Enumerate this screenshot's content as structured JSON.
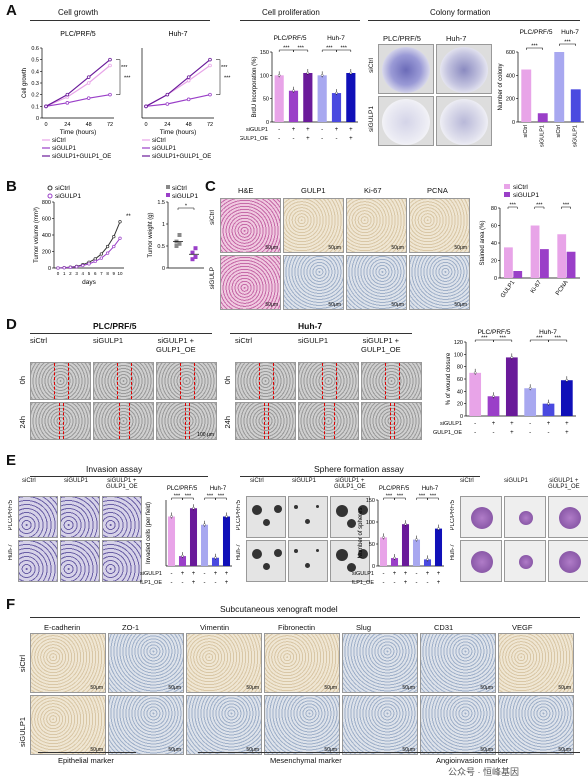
{
  "panelA": {
    "label": "A",
    "growth_title": "Cell growth",
    "prolif_title": "Cell proliferation",
    "colony_title": "Colony formation",
    "cell1": "PLC/PRF/5",
    "cell2": "Huh-7",
    "ylabel_growth": "Cell growth",
    "xlabel_growth": "Time (hours)",
    "ylabel_brdu": "BrdU incorporation (%)",
    "ylabel_colony": "Number of colony",
    "legend": [
      "siCtrl",
      "siGULP1",
      "siGULP1+GULP1_OE"
    ],
    "sig": "***",
    "row_siGULP1": "siGULP1",
    "row_oe": "GULP1_OE",
    "colony_rows": [
      "siCtrl",
      "siGULP1"
    ],
    "colony_xlabels": [
      "siCtrl",
      "siGULP1",
      "siCtrl",
      "siGULP1"
    ]
  },
  "panelB": {
    "label": "B",
    "ylabel_vol": "Tumor volume (mm³)",
    "xlabel_vol": "days",
    "ylabel_wt": "Tumor weight (g)",
    "legend": [
      "siCtrl",
      "siGULP1"
    ],
    "sig_vol": "**",
    "sig_wt": "*"
  },
  "panelC": {
    "label": "C",
    "cols": [
      "H&E",
      "GULP1",
      "Ki-67",
      "PCNA"
    ],
    "rows": [
      "siCtrl",
      "siGULP"
    ],
    "scale": "50μm",
    "ylabel": "Stained area (%)",
    "legend": [
      "siCtrl",
      "siGULP1"
    ],
    "xlabels": [
      "GULP1",
      "Ki-67",
      "PCNA"
    ],
    "sig": "***"
  },
  "panelD": {
    "label": "D",
    "cell1": "PLC/PRF/5",
    "cell2": "Huh-7",
    "cols": [
      "siCtrl",
      "siGULP1",
      "siGULP1 +\nGULP1_OE"
    ],
    "rows": [
      "0h",
      "24h"
    ],
    "scale": "100 μm",
    "ylabel": "% of wound closure",
    "row_siGULP1": "siGULP1",
    "row_oe": "GULP1_OE",
    "sig": "***"
  },
  "panelE": {
    "label": "E",
    "inv_title": "Invasion assay",
    "sph_title": "Sphere formation assay",
    "cols": [
      "siCtrl",
      "siGULP1",
      "siGULP1 +\nGULP1_OE"
    ],
    "rows": [
      "PLC/PRF/5",
      "Huh-7"
    ],
    "ylabel_inv": "Invaded cells (per field)",
    "ylabel_sph": "Number of spheres",
    "cell1": "PLC/PRF/5",
    "cell2": "Huh-7",
    "row_siGULP1": "siGULP1",
    "row_oe": "GULP1_OE",
    "sig": "***"
  },
  "panelF": {
    "label": "F",
    "title": "Subcutaneous xenograft model",
    "cols": [
      "E-cadherin",
      "ZO-1",
      "Vimentin",
      "Fibronectin",
      "Slug",
      "CD31",
      "VEGF"
    ],
    "rows": [
      "siCtrl",
      "siGULP1"
    ],
    "scale": "50μm",
    "groups": [
      "Epithelial marker",
      "Mesenchymal marker",
      "Angioinvasion marker"
    ]
  },
  "watermark": "公众号 · 恒峰基因",
  "chart_data": [
    {
      "type": "line",
      "title": "PLC/PRF/5",
      "xlabel": "Time (hours)",
      "ylabel": "Cell growth",
      "x": [
        0,
        24,
        48,
        72
      ],
      "series": [
        {
          "name": "siCtrl",
          "values": [
            0.1,
            0.18,
            0.3,
            0.45
          ]
        },
        {
          "name": "siGULP1",
          "values": [
            0.1,
            0.13,
            0.17,
            0.2
          ]
        },
        {
          "name": "siGULP1+GULP1_OE",
          "values": [
            0.1,
            0.2,
            0.35,
            0.5
          ]
        }
      ],
      "ylim": [
        0,
        0.6
      ],
      "yticks": [
        0.0,
        0.1,
        0.2,
        0.3,
        0.4,
        0.5,
        0.6
      ]
    },
    {
      "type": "line",
      "title": "Huh-7",
      "xlabel": "Time (hours)",
      "x": [
        0,
        24,
        48,
        72
      ],
      "series": [
        {
          "name": "siCtrl",
          "values": [
            0.1,
            0.2,
            0.32,
            0.45
          ]
        },
        {
          "name": "siGULP1",
          "values": [
            0.1,
            0.12,
            0.16,
            0.2
          ]
        },
        {
          "name": "siGULP1+GULP1_OE",
          "values": [
            0.1,
            0.2,
            0.35,
            0.5
          ]
        }
      ],
      "ylim": [
        0,
        0.6
      ]
    },
    {
      "type": "bar",
      "ylabel": "BrdU incorporation (%)",
      "categories": [
        "PLC/PRF/5 siCtrl",
        "PLC/PRF/5 siGULP1",
        "PLC/PRF/5 OE",
        "Huh-7 siCtrl",
        "Huh-7 siGULP1",
        "Huh-7 OE"
      ],
      "values": [
        100,
        67,
        105,
        100,
        62,
        105
      ],
      "ylim": [
        0,
        150
      ],
      "yticks": [
        0,
        50,
        100,
        150
      ]
    },
    {
      "type": "bar",
      "ylabel": "Number of colony",
      "categories": [
        "siCtrl",
        "siGULP1",
        "siCtrl",
        "siGULP1"
      ],
      "values": [
        450,
        75,
        600,
        280
      ],
      "ylim": [
        0,
        600
      ],
      "yticks": [
        0,
        200,
        400,
        600
      ]
    },
    {
      "type": "line",
      "ylabel": "Tumor volume (mm³)",
      "xlabel": "days",
      "x": [
        0,
        1,
        2,
        3,
        4,
        5,
        6,
        7,
        8,
        9,
        10
      ],
      "series": [
        {
          "name": "siCtrl",
          "values": [
            0,
            5,
            10,
            20,
            40,
            70,
            110,
            170,
            260,
            380,
            560
          ]
        },
        {
          "name": "siGULP1",
          "values": [
            0,
            3,
            8,
            15,
            30,
            50,
            80,
            120,
            180,
            260,
            360
          ]
        }
      ],
      "ylim": [
        0,
        800
      ],
      "yticks": [
        0,
        200,
        400,
        600,
        800
      ]
    },
    {
      "type": "scatter",
      "ylabel": "Tumor weight (g)",
      "series": [
        {
          "name": "siCtrl",
          "values": [
            0.5,
            0.55,
            0.6,
            0.75
          ]
        },
        {
          "name": "siGULP1",
          "values": [
            0.2,
            0.25,
            0.35,
            0.45
          ]
        }
      ],
      "ylim": [
        0,
        1.5
      ],
      "yticks": [
        0.0,
        0.5,
        1.0,
        1.5
      ]
    },
    {
      "type": "bar",
      "ylabel": "Stained area (%)",
      "categories": [
        "GULP1",
        "Ki-67",
        "PCNA"
      ],
      "series": [
        {
          "name": "siCtrl",
          "values": [
            35,
            60,
            50
          ]
        },
        {
          "name": "siGULP1",
          "values": [
            8,
            33,
            30
          ]
        }
      ],
      "ylim": [
        0,
        80
      ],
      "yticks": [
        0,
        20,
        40,
        60,
        80
      ]
    },
    {
      "type": "bar",
      "ylabel": "% of wound closure",
      "categories": [
        "PLC/PRF/5 siCtrl",
        "PLC/PRF/5 siGULP1",
        "PLC/PRF/5 OE",
        "Huh-7 siCtrl",
        "Huh-7 siGULP1",
        "Huh-7 OE"
      ],
      "values": [
        70,
        32,
        95,
        45,
        20,
        58
      ],
      "ylim": [
        0,
        120
      ],
      "yticks": [
        0,
        20,
        40,
        60,
        80,
        100,
        120
      ]
    },
    {
      "type": "bar",
      "ylabel": "Invaded cells (per field)",
      "categories": [
        "PLC/PRF/5 siCtrl",
        "PLC/PRF/5 siGULP1",
        "PLC/PRF/5 OE",
        "Huh-7 siCtrl",
        "Huh-7 siGULP1",
        "Huh-7 OE"
      ],
      "values": [
        300,
        60,
        350,
        250,
        50,
        300
      ],
      "ylim": [
        0,
        400
      ]
    },
    {
      "type": "bar",
      "ylabel": "Number of spheres",
      "categories": [
        "PLC/PRF/5 siCtrl",
        "PLC/PRF/5 siGULP1",
        "PLC/PRF/5 OE",
        "Huh-7 siCtrl",
        "Huh-7 siGULP1",
        "Huh-7 OE"
      ],
      "values": [
        65,
        18,
        95,
        60,
        15,
        85
      ],
      "ylim": [
        0,
        150
      ],
      "yticks": [
        0,
        50,
        100,
        150
      ]
    }
  ],
  "colors": {
    "ctrl": "#e8a4e8",
    "si": "#9a3fc8",
    "oe": "#6a1a9a",
    "ctrl2": "#a8a8f0",
    "si2": "#4a4ae0",
    "oe2": "#1010b8",
    "red": "#dd0000"
  }
}
